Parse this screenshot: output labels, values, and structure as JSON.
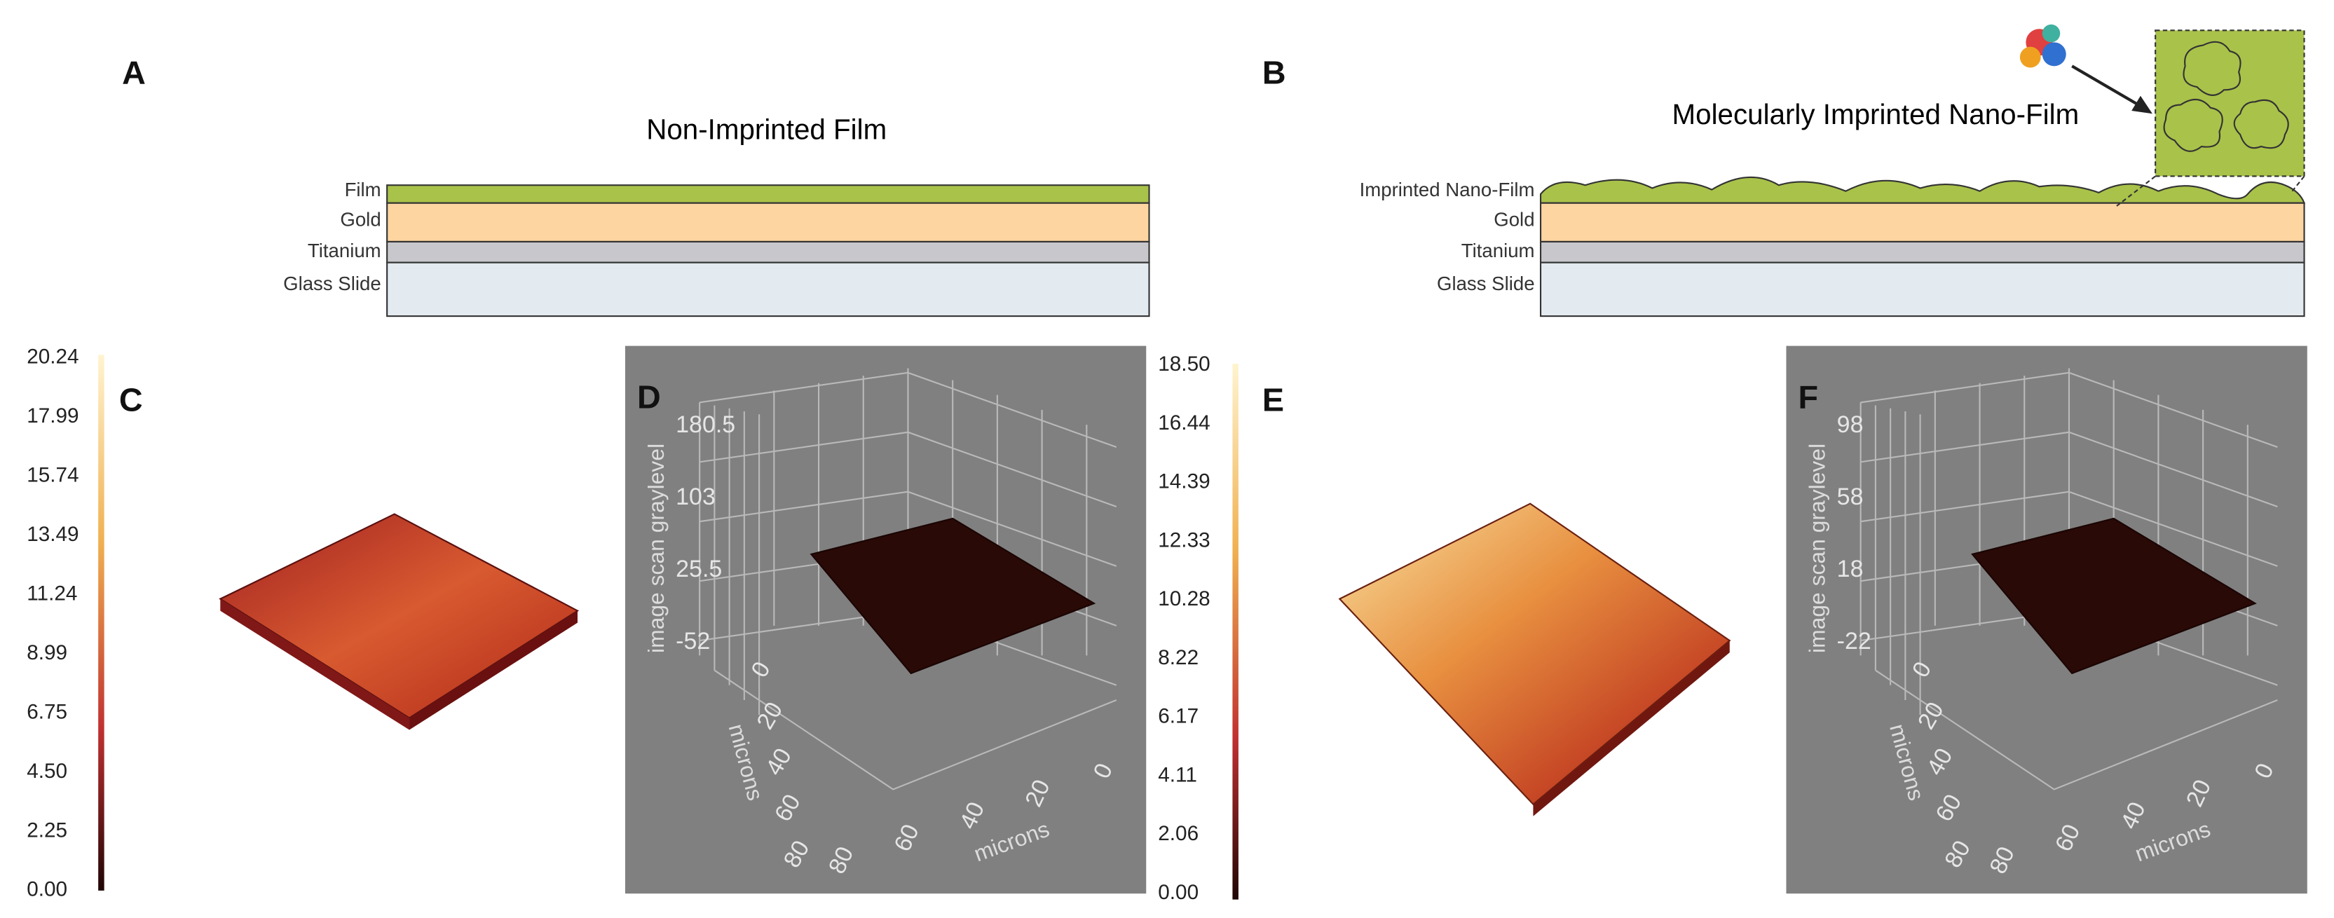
{
  "panels": {
    "a": {
      "label": "A",
      "title": "Non-Imprinted Film",
      "layers": [
        "Film",
        "Gold",
        "Titanium",
        "Glass Slide"
      ]
    },
    "b": {
      "label": "B",
      "title": "Molecularly Imprinted Nano-Film",
      "layers": [
        "Imprinted Nano-Film",
        "Gold",
        "Titanium",
        "Glass Slide"
      ]
    },
    "c": {
      "label": "C",
      "colorbar": [
        "20.24",
        "17.99",
        "15.74",
        "13.49",
        "11.24",
        "8.99",
        "6.75",
        "4.50",
        "2.25",
        "0.00"
      ]
    },
    "d": {
      "label": "D",
      "z_label": "image scan graylevel",
      "z_ticks": [
        "180.5",
        "103",
        "25.5",
        "-52"
      ],
      "left_ticks": [
        "0",
        "20",
        "40",
        "60",
        "80"
      ],
      "left_label": "microns",
      "bottom_ticks": [
        "80",
        "60",
        "40",
        "20",
        "0"
      ],
      "bottom_label": "microns"
    },
    "e": {
      "label": "E",
      "colorbar": [
        "18.50",
        "16.44",
        "14.39",
        "12.33",
        "10.28",
        "8.22",
        "6.17",
        "4.11",
        "2.06",
        "0.00"
      ]
    },
    "f": {
      "label": "F",
      "z_label": "image scan graylevel",
      "z_ticks": [
        "98",
        "58",
        "18",
        "-22"
      ],
      "left_ticks": [
        "0",
        "20",
        "40",
        "60",
        "80"
      ],
      "left_label": "microns",
      "bottom_ticks": [
        "80",
        "60",
        "40",
        "20",
        "0"
      ],
      "bottom_label": "microns"
    }
  }
}
